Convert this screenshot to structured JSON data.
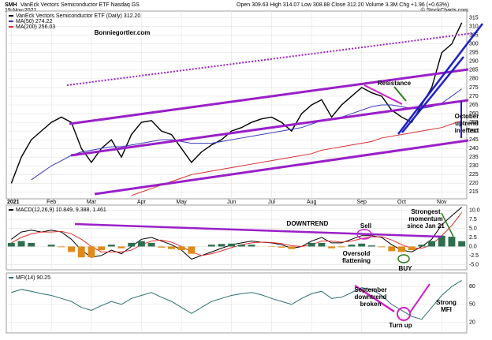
{
  "chart_data": [
    {
      "type": "line",
      "symbol": "SMH",
      "title": "VanEck Vectors Semiconductor ETF Nasdaq GS",
      "date": "19-Nov-2021",
      "quote": "Open 309.63 High 314.07 Low 308.88 Close 312.20 Volume 3.3M Chg +1.96 (+0.63%)",
      "source": "© StockCharts.com",
      "categories": [
        "2021",
        null,
        null,
        null,
        "Feb",
        null,
        null,
        null,
        "Mar",
        null,
        null,
        null,
        null,
        "Apr",
        null,
        null,
        null,
        "May",
        null,
        null,
        null,
        null,
        "Jun",
        null,
        null,
        null,
        "Jul",
        null,
        null,
        null,
        "Aug",
        null,
        null,
        null,
        null,
        "Sep",
        null,
        null,
        null,
        "Oct",
        null,
        null,
        null,
        "Nov",
        null,
        null
      ],
      "series": [
        {
          "name": "VanEck Vectors Semiconductor ETF (Daily) 312.20",
          "color": "#000000",
          "values": [
            220,
            235,
            245,
            250,
            255,
            258,
            255,
            240,
            232,
            240,
            245,
            235,
            248,
            255,
            256,
            250,
            248,
            240,
            232,
            238,
            242,
            245,
            250,
            252,
            255,
            257,
            258,
            255,
            250,
            260,
            265,
            268,
            258,
            265,
            270,
            275,
            272,
            270,
            262,
            258,
            255,
            265,
            275,
            295,
            300,
            312.2
          ]
        },
        {
          "name": "MA(50) 274.22",
          "color": "#3a3ab8",
          "values": [
            null,
            null,
            222,
            226,
            230,
            233,
            236,
            238,
            239,
            240,
            241,
            241,
            242,
            243,
            244,
            245,
            245,
            244,
            243,
            243,
            243,
            244,
            245,
            246,
            247,
            248,
            249,
            250,
            251,
            252,
            254,
            256,
            257,
            258,
            260,
            262,
            264,
            265,
            265,
            264,
            263,
            263,
            264,
            266,
            270,
            274.22
          ]
        },
        {
          "name": "MA(200) 256.03",
          "color": "#d03030",
          "values": [
            null,
            null,
            null,
            null,
            null,
            null,
            null,
            null,
            null,
            null,
            null,
            null,
            213,
            215,
            217,
            219,
            221,
            223,
            225,
            226,
            227,
            228,
            229,
            230,
            231,
            232,
            233,
            234,
            235,
            236,
            237,
            239,
            240,
            241,
            242,
            243,
            244,
            246,
            247,
            248,
            249,
            250,
            251,
            252,
            254,
            256.03
          ]
        }
      ],
      "ylim": [
        212,
        318
      ],
      "yticks": [
        215,
        220,
        225,
        230,
        235,
        240,
        245,
        250,
        255,
        260,
        265,
        270,
        275,
        280,
        285,
        290,
        295,
        300,
        305,
        310,
        315
      ],
      "grid": true,
      "annotations": [
        {
          "text": "Bonniegortler.com",
          "color": "#2e7d1e"
        },
        {
          "text": "Resistance",
          "color": "#2e7d1e"
        },
        {
          "lines": [
            "October",
            "uptrend",
            "in effect"
          ],
          "color": "#1f1fc8"
        }
      ]
    },
    {
      "type": "line",
      "series": [
        {
          "name": "MACD(12,26,9) 10.849, 9.388, 1.461",
          "color": "#000000",
          "values": [
            2,
            4,
            4.5,
            4,
            4.5,
            4,
            2,
            -1,
            -3,
            -2.5,
            -1,
            -2,
            0,
            2,
            2.5,
            1.5,
            0.5,
            -1,
            -3.5,
            -2.5,
            -1.5,
            -0.5,
            0.5,
            1,
            1.5,
            1.2,
            1,
            0.5,
            -0.5,
            0,
            1.5,
            2.5,
            1,
            1,
            2,
            3,
            3,
            2.5,
            0.5,
            -1,
            -1.5,
            0,
            2,
            6,
            8.5,
            10.849
          ]
        },
        {
          "color": "#e03030",
          "values": [
            1,
            2.5,
            3.5,
            4,
            4,
            4.2,
            3.5,
            2,
            0,
            -1.5,
            -1.5,
            -1.5,
            -1,
            0.5,
            1.5,
            1.8,
            1.2,
            0,
            -1.5,
            -2.5,
            -2,
            -1.2,
            -0.3,
            0.5,
            1,
            1.2,
            1.1,
            0.8,
            0.2,
            0,
            0.5,
            1.5,
            1.5,
            1.2,
            1.5,
            2.2,
            2.7,
            2.7,
            1.8,
            0.5,
            -0.5,
            -0.5,
            0.5,
            3,
            5.8,
            9.388
          ]
        },
        {
          "type": "bar",
          "color": "#2e6e4e",
          "negative_color": "#e08a1a",
          "values": [
            1,
            1.5,
            1,
            0,
            0.5,
            -0.2,
            -1.5,
            -3,
            -3,
            -1,
            0.5,
            -0.5,
            1,
            1.5,
            1,
            -0.3,
            -0.7,
            -1,
            -2,
            0,
            0.5,
            0.7,
            0.8,
            0.5,
            0.5,
            0,
            -0.1,
            -0.3,
            -0.7,
            0,
            1,
            1,
            -0.5,
            -0.2,
            0.5,
            0.8,
            0.3,
            -0.2,
            -1.3,
            -1.5,
            -1,
            0.5,
            1.5,
            3,
            2.7,
            1.461
          ]
        }
      ],
      "ylim": [
        -6,
        11
      ],
      "yticks": [
        {
          "value": -5,
          "label": "-5.0"
        },
        {
          "value": -2.5,
          "label": "-2.5"
        },
        {
          "value": 0,
          "label": "0.0"
        },
        {
          "value": 2.5,
          "label": "2.5"
        },
        {
          "value": 5,
          "label": "5.0"
        },
        {
          "value": 7.5,
          "label": "7.5"
        },
        {
          "value": 10,
          "label": "10.0"
        }
      ],
      "grid": true,
      "annotations": [
        {
          "text": "DOWNTREND",
          "color": "#9a20c8"
        },
        {
          "text": "Sell",
          "color": "#d020c8"
        },
        {
          "lines": [
            "Oversold",
            "flattening"
          ],
          "color": "#d07a10"
        },
        {
          "text": "BUY",
          "color": "#2e7d1e"
        },
        {
          "lines": [
            "Strongest",
            "momentum",
            "since Jan 21"
          ],
          "color": "#2e7d1e"
        }
      ]
    },
    {
      "type": "line",
      "series": [
        {
          "name": "MFI(14) 90.25",
          "color": "#2e6e6e",
          "values": [
            70,
            75,
            72,
            68,
            65,
            60,
            55,
            45,
            40,
            48,
            55,
            50,
            60,
            65,
            70,
            62,
            55,
            45,
            35,
            45,
            55,
            60,
            65,
            68,
            70,
            66,
            60,
            55,
            50,
            60,
            68,
            72,
            60,
            62,
            70,
            78,
            75,
            65,
            50,
            40,
            30,
            25,
            45,
            65,
            80,
            90.25
          ]
        }
      ],
      "ylim": [
        5,
        100
      ],
      "yticks": [
        20,
        50,
        80
      ],
      "grid": true,
      "annotations": [
        {
          "lines": [
            "September",
            "downtrend",
            "broken"
          ],
          "color": "#d020c8"
        },
        {
          "text": "Turn up",
          "color": "#d020c8"
        },
        {
          "lines": [
            "Strong",
            "MFI"
          ],
          "color": "#d020c8"
        }
      ]
    }
  ]
}
